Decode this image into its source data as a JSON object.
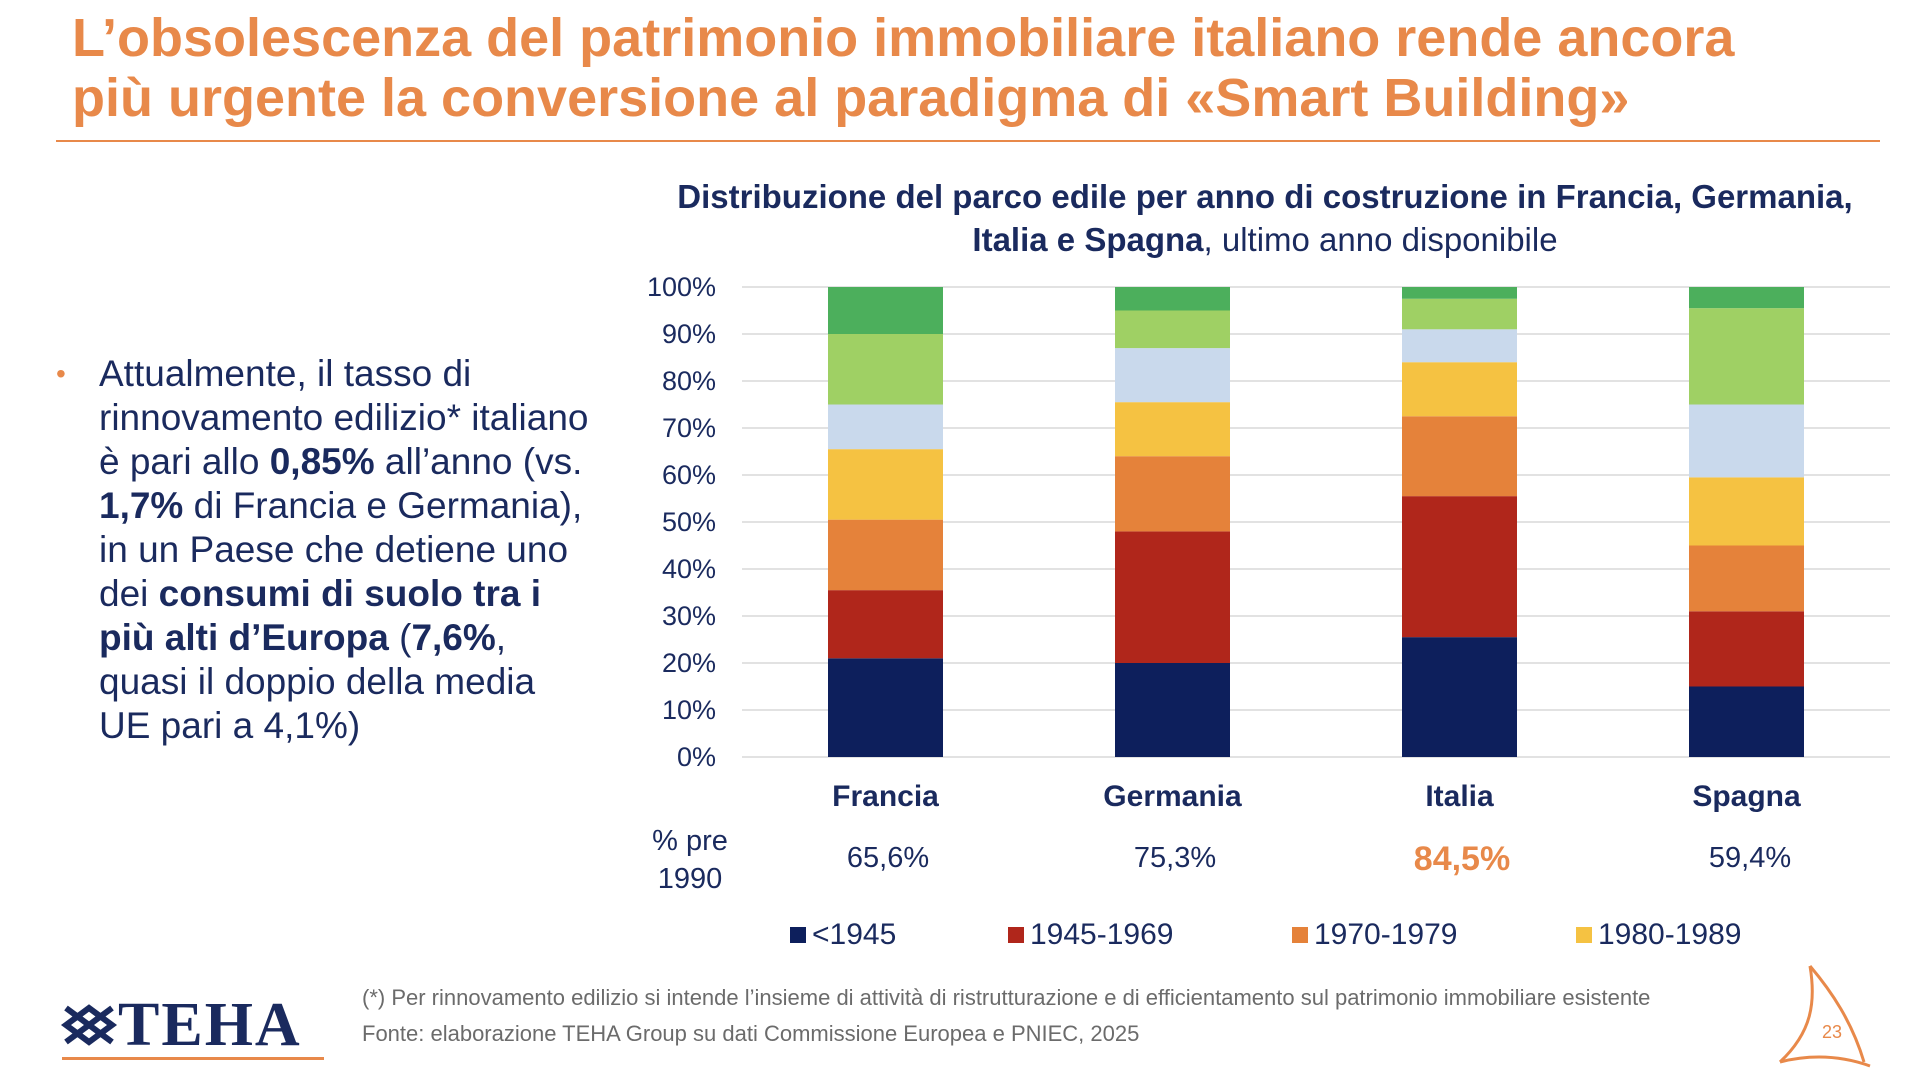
{
  "slide": {
    "title_line1": "L’obsolescenza del patrimonio immobiliare italiano rende ancora",
    "title_line2": "più urgente la conversione al paradigma di «Smart Building»",
    "page_number": "23"
  },
  "bullet": {
    "t1": "Attualmente, il tasso di rinnovamento edilizio* italiano è pari allo ",
    "b1": "0,85%",
    "t2": " all’anno (vs. ",
    "b2": "1,7%",
    "t3": " di Francia e Germania), in un Paese che detiene uno dei ",
    "b3": "consumi di suolo tra i più alti d’Europa",
    "t4": " (",
    "b4": "7,6%",
    "t5": ", quasi il doppio della media UE pari a 4,1%)"
  },
  "chart_title": {
    "bold": "Distribuzione del parco edile per anno di costruzione in Francia, Germania, Italia e Spagna",
    "normal": ", ultimo anno disponibile"
  },
  "pre1990": {
    "label_line1": "% pre",
    "label_line2": "1990",
    "values": [
      "65,6%",
      "75,3%",
      "84,5%",
      "59,4%"
    ]
  },
  "legend": [
    {
      "label": "<1945",
      "color": "#0d1f5c"
    },
    {
      "label": "1945-1969",
      "color": "#b0261b"
    },
    {
      "label": "1970-1979",
      "color": "#e5823a"
    },
    {
      "label": "1980-1989",
      "color": "#f5c242"
    }
  ],
  "footnote": {
    "line1": "(*) Per rinnovamento edilizio si intende l’insieme di attività di ristrutturazione e di efficientamento sul patrimonio immobiliare esistente",
    "line2": "Fonte: elaborazione TEHA Group su dati Commissione Europea e PNIEC, 2025"
  },
  "logo": {
    "text": "TEHA"
  },
  "chart_data": {
    "type": "bar",
    "stacked": true,
    "categories": [
      "Francia",
      "Germania",
      "Italia",
      "Spagna"
    ],
    "y_ticks": [
      "0%",
      "10%",
      "20%",
      "30%",
      "40%",
      "50%",
      "60%",
      "70%",
      "80%",
      "90%",
      "100%"
    ],
    "ylim": [
      0,
      100
    ],
    "grid": true,
    "series": [
      {
        "name": "<1945",
        "color": "#0d1f5c",
        "values": [
          21,
          20,
          25.5,
          15
        ]
      },
      {
        "name": "1945-1969",
        "color": "#b0261b",
        "values": [
          14.5,
          28,
          30,
          16
        ]
      },
      {
        "name": "1970-1979",
        "color": "#e5823a",
        "values": [
          15,
          16,
          17,
          14
        ]
      },
      {
        "name": "1980-1989",
        "color": "#f5c242",
        "values": [
          15,
          11.5,
          11.5,
          14.5
        ]
      },
      {
        "color": "#c9d9ec",
        "values": [
          9.5,
          11.5,
          7,
          15.5
        ]
      },
      {
        "color": "#9fd064",
        "values": [
          15,
          8,
          6.5,
          20.5
        ]
      },
      {
        "color": "#4caf5c",
        "values": [
          10,
          5,
          2.5,
          4.5
        ]
      }
    ]
  }
}
